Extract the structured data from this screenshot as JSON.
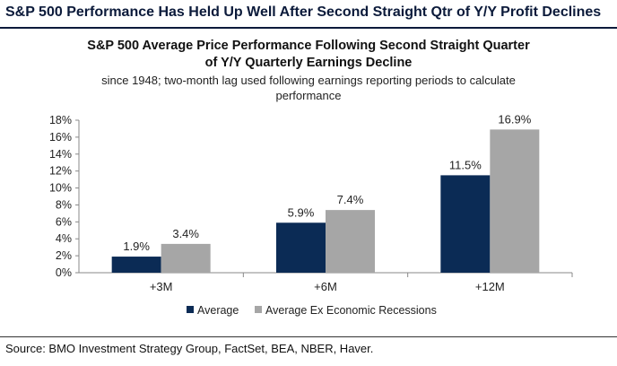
{
  "headline": "S&P 500 Performance Has Held Up Well After Second Straight Qtr of Y/Y Profit Declines",
  "source": "Source: BMO Investment Strategy Group, FactSet, BEA, NBER, Haver.",
  "colors": {
    "average": "#0b2b55",
    "ex_recessions": "#a6a6a6",
    "headline": "#0b1a3a"
  },
  "chart_data": {
    "type": "bar",
    "title_line1": "S&P 500 Average Price Performance Following Second Straight Quarter",
    "title_line2": "of Y/Y Quarterly Earnings Decline",
    "subtitle_line1": "since 1948; two-month lag used following earnings reporting periods to calculate",
    "subtitle_line2": "performance",
    "categories": [
      "+3M",
      "+6M",
      "+12M"
    ],
    "series": [
      {
        "name": "Average",
        "values": [
          1.9,
          5.9,
          11.5
        ],
        "labels": [
          "1.9%",
          "5.9%",
          "11.5%"
        ],
        "color": "#0b2b55"
      },
      {
        "name": "Average Ex Economic Recessions",
        "values": [
          3.4,
          7.4,
          16.9
        ],
        "labels": [
          "3.4%",
          "7.4%",
          "16.9%"
        ],
        "color": "#a6a6a6"
      }
    ],
    "yticks": [
      "0%",
      "2%",
      "4%",
      "6%",
      "8%",
      "10%",
      "12%",
      "14%",
      "16%",
      "18%"
    ],
    "ylim": [
      0,
      18
    ],
    "legend_position": "bottom",
    "grid": false
  }
}
